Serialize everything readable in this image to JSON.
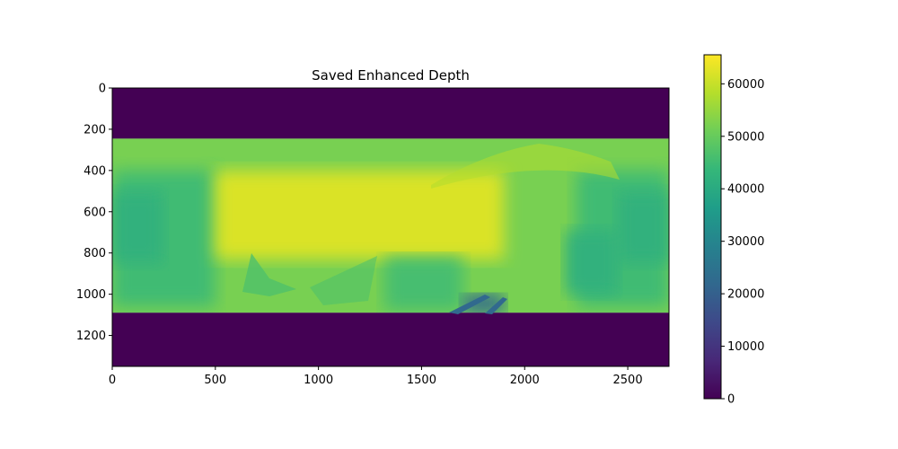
{
  "chart_data": [
    {
      "type": "heatmap",
      "title": "Saved Enhanced Depth",
      "xlabel": "",
      "ylabel": "",
      "xlim": [
        0,
        2700
      ],
      "ylim": [
        1350,
        0
      ],
      "x_ticks": [
        0,
        500,
        1000,
        1500,
        2000,
        2500
      ],
      "y_ticks": [
        0,
        200,
        400,
        600,
        800,
        1000,
        1200
      ],
      "x_tick_labels": [
        "0",
        "500",
        "1000",
        "1500",
        "2000",
        "2500"
      ],
      "y_tick_labels": [
        "0",
        "200",
        "400",
        "600",
        "800",
        "1000",
        "1200"
      ],
      "grid": false,
      "colormap": "viridis",
      "image_regions": [
        {
          "x0": 0,
          "x1": 2700,
          "y0": 0,
          "y1": 245,
          "value": 0
        },
        {
          "x0": 0,
          "x1": 2700,
          "y0": 1090,
          "y1": 1350,
          "value": 0
        },
        {
          "x0": 0,
          "x1": 2700,
          "y0": 245,
          "y1": 1090,
          "value": 52000
        },
        {
          "x0": 0,
          "x1": 500,
          "y0": 400,
          "y1": 1060,
          "value": 45000
        },
        {
          "x0": 0,
          "x1": 250,
          "y0": 500,
          "y1": 850,
          "value": 42000
        },
        {
          "x0": 2250,
          "x1": 2700,
          "y0": 400,
          "y1": 1060,
          "value": 45000
        },
        {
          "x0": 2450,
          "x1": 2700,
          "y0": 500,
          "y1": 850,
          "value": 42000
        },
        {
          "x0": 500,
          "x1": 1900,
          "y0": 400,
          "y1": 830,
          "value": 62000
        },
        {
          "x0": 1320,
          "x1": 1700,
          "y0": 820,
          "y1": 1080,
          "value": 46000
        },
        {
          "x0": 2200,
          "x1": 2450,
          "y0": 690,
          "y1": 1000,
          "value": 42000
        },
        {
          "x0": 1700,
          "x1": 1900,
          "y0": 1000,
          "y1": 1090,
          "value": 22000
        }
      ]
    },
    {
      "type": "colorbar",
      "colormap": "viridis",
      "ylim": [
        0,
        65535
      ],
      "ticks": [
        0,
        10000,
        20000,
        30000,
        40000,
        50000,
        60000
      ],
      "tick_labels": [
        "0",
        "10000",
        "20000",
        "30000",
        "40000",
        "50000",
        "60000"
      ],
      "colors": [
        "#440154",
        "#482878",
        "#3e4989",
        "#31688e",
        "#26828e",
        "#1f9e89",
        "#35b779",
        "#6ece58",
        "#b5de2b",
        "#fde725"
      ]
    }
  ]
}
